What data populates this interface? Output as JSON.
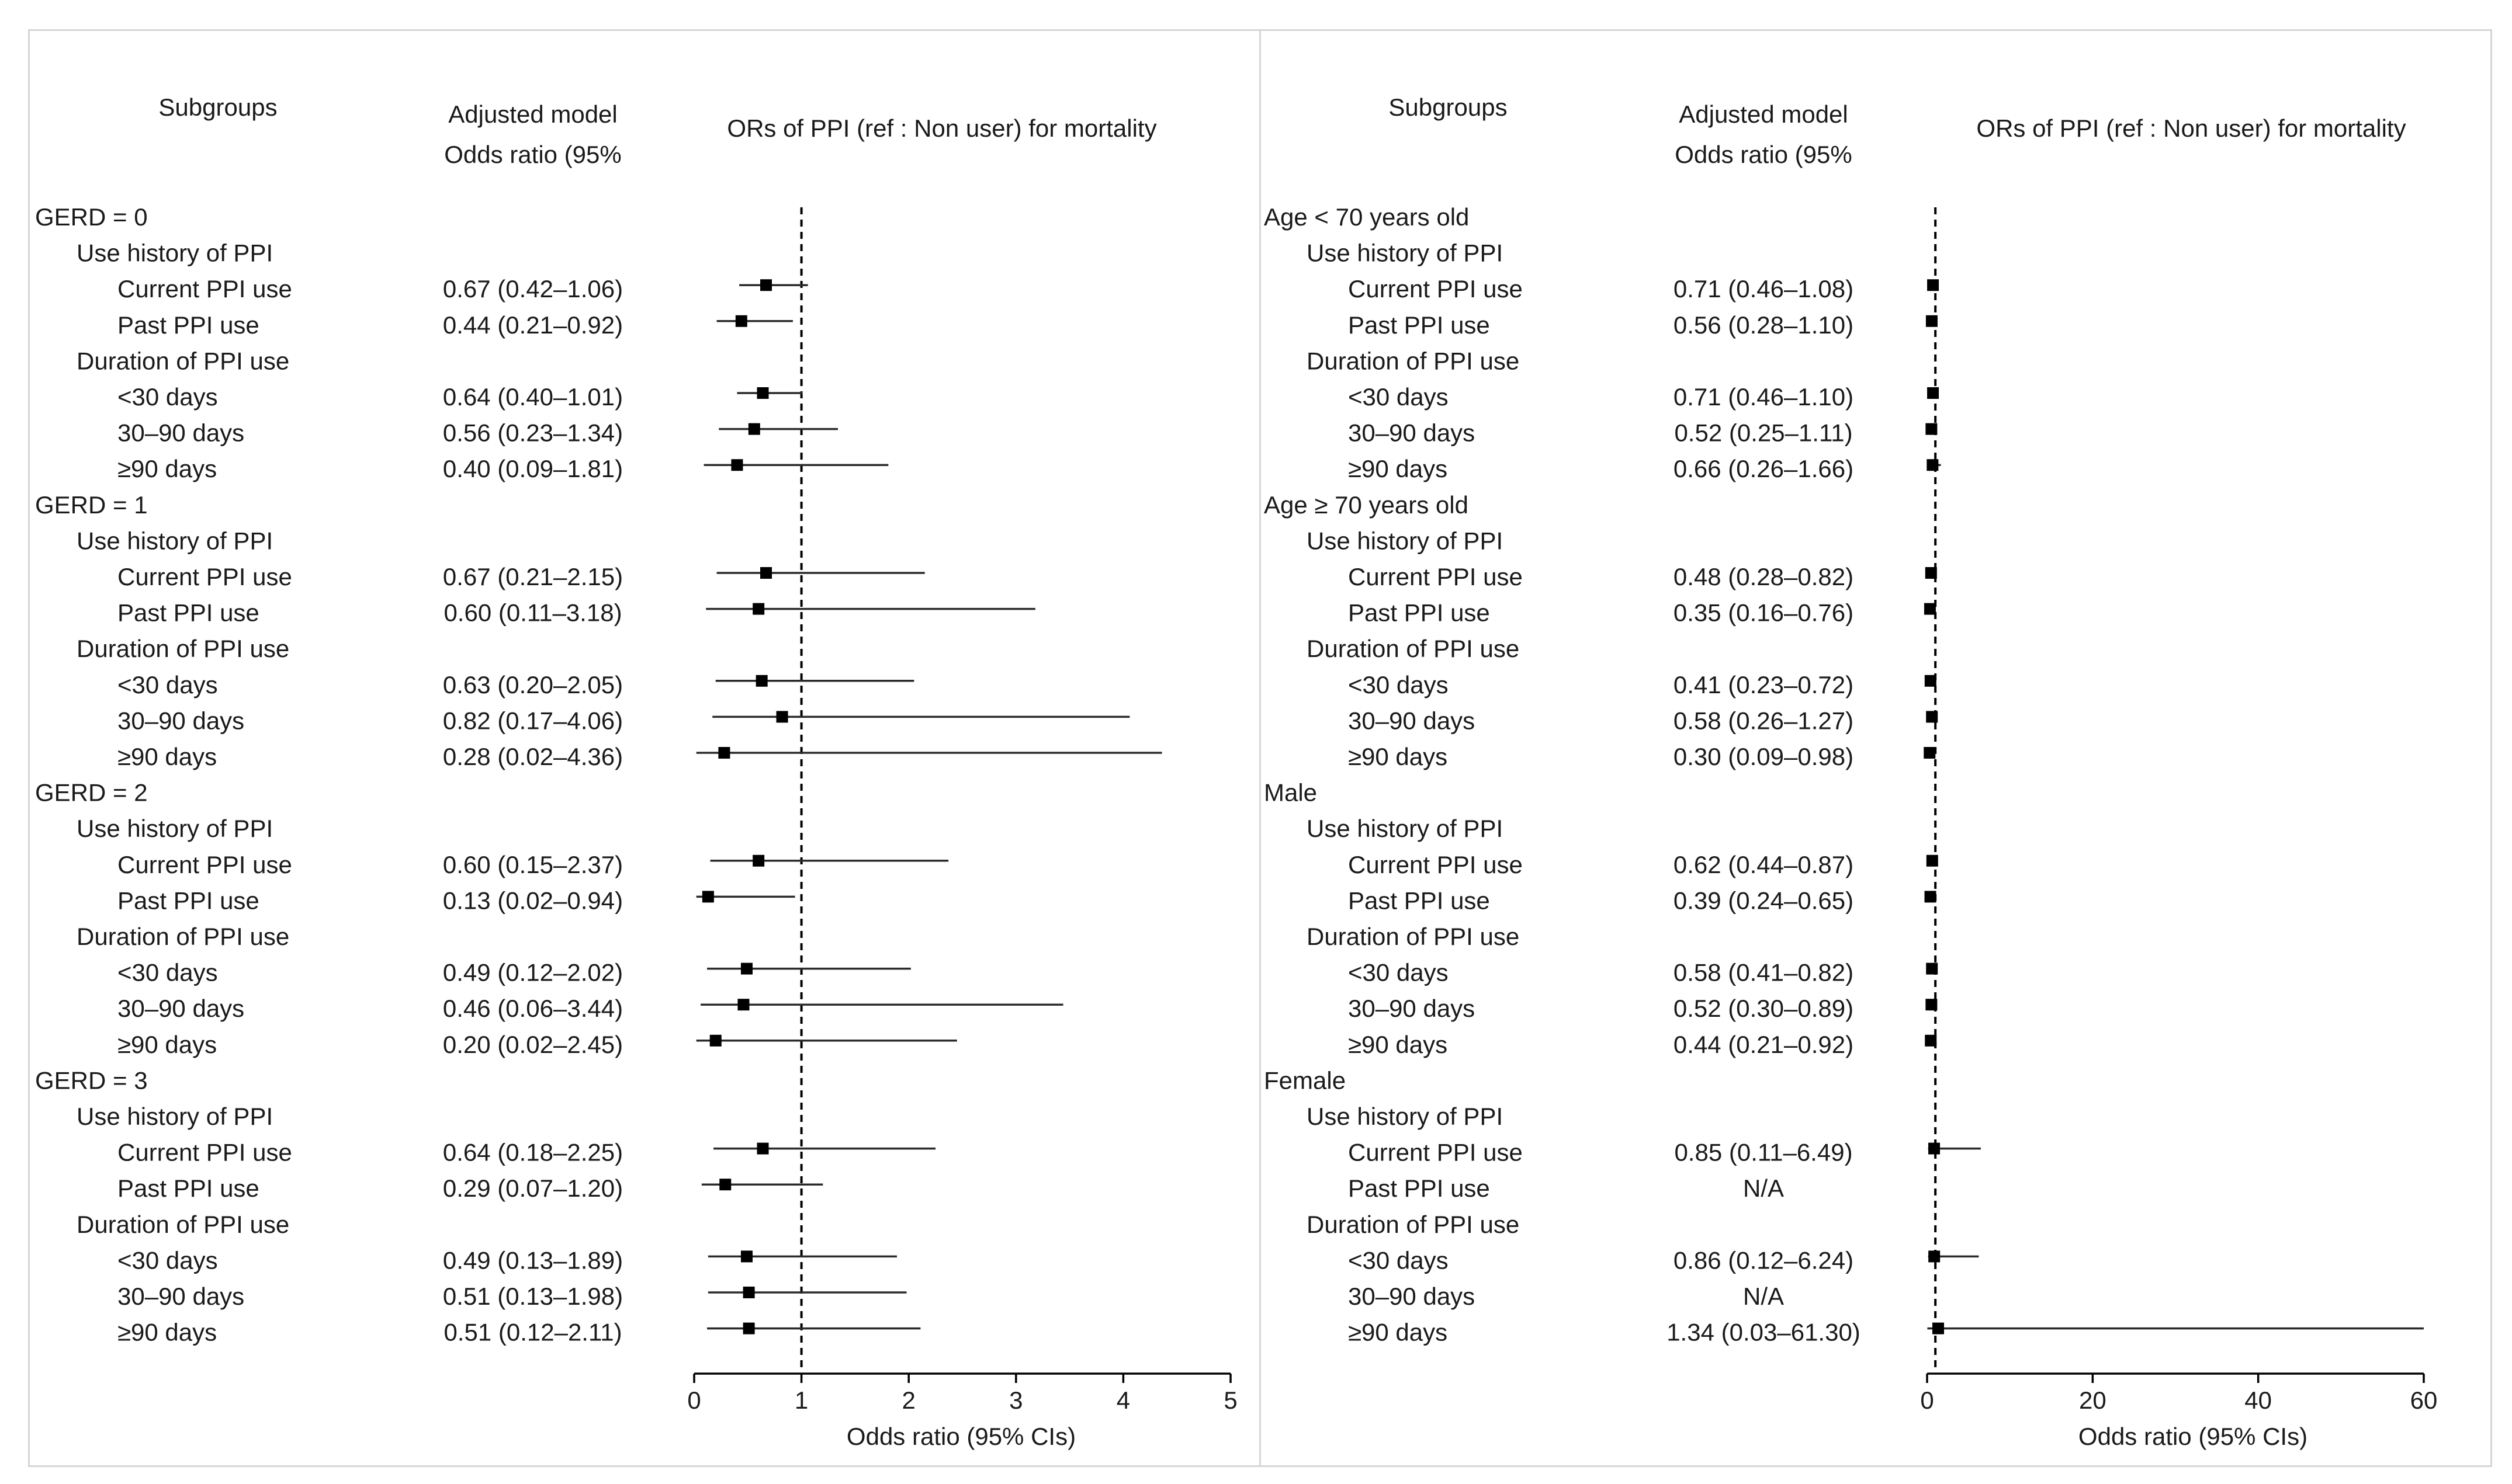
{
  "chart_data": [
    {
      "type": "forest",
      "header": {
        "subgroups": "Subgroups",
        "model_line1": "Adjusted model",
        "model_line2": "Odds ratio (95%",
        "plot_title": "ORs of PPI  (ref : Non user) for mortality"
      },
      "xlabel": "Odds ratio (95% CIs)",
      "xlim": [
        0,
        5
      ],
      "xticks": [
        "0",
        "1",
        "2",
        "3",
        "4",
        "5"
      ],
      "reference_line": 1,
      "rows": [
        {
          "label": "GERD = 0",
          "level": 0
        },
        {
          "label": "Use history of PPI",
          "level": 1
        },
        {
          "label": "Current PPI use",
          "level": 2,
          "ci_text": "0.67 (0.42–1.06)",
          "or": 0.67,
          "lower": 0.42,
          "upper": 1.06
        },
        {
          "label": "Past PPI use",
          "level": 2,
          "ci_text": "0.44 (0.21–0.92)",
          "or": 0.44,
          "lower": 0.21,
          "upper": 0.92
        },
        {
          "label": "Duration of PPI use",
          "level": 1
        },
        {
          "label": "<30 days",
          "level": 2,
          "ci_text": "0.64 (0.40–1.01)",
          "or": 0.64,
          "lower": 0.4,
          "upper": 1.01
        },
        {
          "label": "30–90 days",
          "level": 2,
          "ci_text": "0.56 (0.23–1.34)",
          "or": 0.56,
          "lower": 0.23,
          "upper": 1.34
        },
        {
          "label": "≥90 days",
          "level": 2,
          "ci_text": "0.40 (0.09–1.81)",
          "or": 0.4,
          "lower": 0.09,
          "upper": 1.81
        },
        {
          "label": "GERD = 1",
          "level": 0
        },
        {
          "label": "Use history of PPI",
          "level": 1
        },
        {
          "label": "Current PPI use",
          "level": 2,
          "ci_text": "0.67 (0.21–2.15)",
          "or": 0.67,
          "lower": 0.21,
          "upper": 2.15
        },
        {
          "label": "Past PPI use",
          "level": 2,
          "ci_text": "0.60 (0.11–3.18)",
          "or": 0.6,
          "lower": 0.11,
          "upper": 3.18
        },
        {
          "label": "Duration of PPI use",
          "level": 1
        },
        {
          "label": "<30 days",
          "level": 2,
          "ci_text": "0.63 (0.20–2.05)",
          "or": 0.63,
          "lower": 0.2,
          "upper": 2.05
        },
        {
          "label": "30–90 days",
          "level": 2,
          "ci_text": "0.82 (0.17–4.06)",
          "or": 0.82,
          "lower": 0.17,
          "upper": 4.06
        },
        {
          "label": "≥90 days",
          "level": 2,
          "ci_text": "0.28 (0.02–4.36)",
          "or": 0.28,
          "lower": 0.02,
          "upper": 4.36
        },
        {
          "label": "GERD = 2",
          "level": 0
        },
        {
          "label": "Use history of PPI",
          "level": 1
        },
        {
          "label": "Current PPI use",
          "level": 2,
          "ci_text": "0.60 (0.15–2.37)",
          "or": 0.6,
          "lower": 0.15,
          "upper": 2.37
        },
        {
          "label": "Past PPI use",
          "level": 2,
          "ci_text": "0.13 (0.02–0.94)",
          "or": 0.13,
          "lower": 0.02,
          "upper": 0.94
        },
        {
          "label": "Duration of PPI use",
          "level": 1
        },
        {
          "label": "<30 days",
          "level": 2,
          "ci_text": "0.49 (0.12–2.02)",
          "or": 0.49,
          "lower": 0.12,
          "upper": 2.02
        },
        {
          "label": "30–90 days",
          "level": 2,
          "ci_text": "0.46 (0.06–3.44)",
          "or": 0.46,
          "lower": 0.06,
          "upper": 3.44
        },
        {
          "label": "≥90 days",
          "level": 2,
          "ci_text": "0.20 (0.02–2.45)",
          "or": 0.2,
          "lower": 0.02,
          "upper": 2.45
        },
        {
          "label": "GERD = 3",
          "level": 0
        },
        {
          "label": "Use history of PPI",
          "level": 1
        },
        {
          "label": "Current PPI use",
          "level": 2,
          "ci_text": "0.64 (0.18–2.25)",
          "or": 0.64,
          "lower": 0.18,
          "upper": 2.25
        },
        {
          "label": "Past PPI use",
          "level": 2,
          "ci_text": "0.29 (0.07–1.20)",
          "or": 0.29,
          "lower": 0.07,
          "upper": 1.2
        },
        {
          "label": "Duration of PPI use",
          "level": 1
        },
        {
          "label": "<30 days",
          "level": 2,
          "ci_text": "0.49 (0.13–1.89)",
          "or": 0.49,
          "lower": 0.13,
          "upper": 1.89
        },
        {
          "label": "30–90 days",
          "level": 2,
          "ci_text": "0.51 (0.13–1.98)",
          "or": 0.51,
          "lower": 0.13,
          "upper": 1.98
        },
        {
          "label": "≥90 days",
          "level": 2,
          "ci_text": "0.51 (0.12–2.11)",
          "or": 0.51,
          "lower": 0.12,
          "upper": 2.11
        }
      ]
    },
    {
      "type": "forest",
      "header": {
        "subgroups": "Subgroups",
        "model_line1": "Adjusted model",
        "model_line2": "Odds ratio (95%",
        "plot_title": "ORs of PPI  (ref : Non user) for mortality"
      },
      "xlabel": "Odds ratio (95% CIs)",
      "xlim": [
        0,
        60
      ],
      "xticks": [
        "0",
        "20",
        "40",
        "60"
      ],
      "reference_line": 1,
      "rows": [
        {
          "label": "Age < 70 years old",
          "level": 0
        },
        {
          "label": "Use history of PPI",
          "level": 1
        },
        {
          "label": "Current PPI use",
          "level": 2,
          "ci_text": "0.71 (0.46–1.08)",
          "or": 0.71,
          "lower": 0.46,
          "upper": 1.08
        },
        {
          "label": "Past PPI use",
          "level": 2,
          "ci_text": "0.56 (0.28–1.10)",
          "or": 0.56,
          "lower": 0.28,
          "upper": 1.1
        },
        {
          "label": "Duration of PPI use",
          "level": 1
        },
        {
          "label": "<30 days",
          "level": 2,
          "ci_text": "0.71 (0.46–1.10)",
          "or": 0.71,
          "lower": 0.46,
          "upper": 1.1
        },
        {
          "label": "30–90 days",
          "level": 2,
          "ci_text": "0.52 (0.25–1.11)",
          "or": 0.52,
          "lower": 0.25,
          "upper": 1.11
        },
        {
          "label": "≥90 days",
          "level": 2,
          "ci_text": "0.66 (0.26–1.66)",
          "or": 0.66,
          "lower": 0.26,
          "upper": 1.66
        },
        {
          "label": "Age ≥ 70 years old",
          "level": 0
        },
        {
          "label": "Use history of PPI",
          "level": 1
        },
        {
          "label": "Current PPI use",
          "level": 2,
          "ci_text": "0.48 (0.28–0.82)",
          "or": 0.48,
          "lower": 0.28,
          "upper": 0.82
        },
        {
          "label": "Past PPI use",
          "level": 2,
          "ci_text": "0.35 (0.16–0.76)",
          "or": 0.35,
          "lower": 0.16,
          "upper": 0.76
        },
        {
          "label": "Duration of PPI use",
          "level": 1
        },
        {
          "label": "<30 days",
          "level": 2,
          "ci_text": "0.41 (0.23–0.72)",
          "or": 0.41,
          "lower": 0.23,
          "upper": 0.72
        },
        {
          "label": "30–90 days",
          "level": 2,
          "ci_text": "0.58 (0.26–1.27)",
          "or": 0.58,
          "lower": 0.26,
          "upper": 1.27
        },
        {
          "label": "≥90 days",
          "level": 2,
          "ci_text": "0.30 (0.09–0.98)",
          "or": 0.3,
          "lower": 0.09,
          "upper": 0.98
        },
        {
          "label": "Male",
          "level": 0
        },
        {
          "label": "Use history of PPI",
          "level": 1
        },
        {
          "label": "Current PPI use",
          "level": 2,
          "ci_text": "0.62 (0.44–0.87)",
          "or": 0.62,
          "lower": 0.44,
          "upper": 0.87
        },
        {
          "label": "Past PPI use",
          "level": 2,
          "ci_text": "0.39 (0.24–0.65)",
          "or": 0.39,
          "lower": 0.24,
          "upper": 0.65
        },
        {
          "label": "Duration of PPI use",
          "level": 1
        },
        {
          "label": "<30 days",
          "level": 2,
          "ci_text": "0.58 (0.41–0.82)",
          "or": 0.58,
          "lower": 0.41,
          "upper": 0.82
        },
        {
          "label": "30–90 days",
          "level": 2,
          "ci_text": "0.52 (0.30–0.89)",
          "or": 0.52,
          "lower": 0.3,
          "upper": 0.89
        },
        {
          "label": "≥90 days",
          "level": 2,
          "ci_text": "0.44 (0.21–0.92)",
          "or": 0.44,
          "lower": 0.21,
          "upper": 0.92
        },
        {
          "label": "Female",
          "level": 0
        },
        {
          "label": "Use history of PPI",
          "level": 1
        },
        {
          "label": "Current PPI use",
          "level": 2,
          "ci_text": "0.85 (0.11–6.49)",
          "or": 0.85,
          "lower": 0.11,
          "upper": 6.49
        },
        {
          "label": "Past PPI use",
          "level": 2,
          "ci_text": "N/A"
        },
        {
          "label": "Duration of PPI use",
          "level": 1
        },
        {
          "label": "<30 days",
          "level": 2,
          "ci_text": "0.86 (0.12–6.24)",
          "or": 0.86,
          "lower": 0.12,
          "upper": 6.24
        },
        {
          "label": "30–90 days",
          "level": 2,
          "ci_text": "N/A"
        },
        {
          "label": "≥90 days",
          "level": 2,
          "ci_text": "1.34 (0.03–61.30)",
          "or": 1.34,
          "lower": 0.03,
          "upper": 61.3
        }
      ]
    }
  ]
}
